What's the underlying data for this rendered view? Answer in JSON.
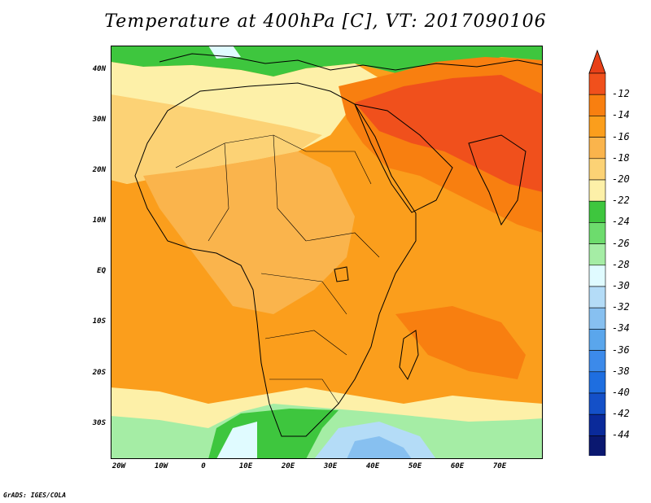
{
  "title": "Temperature at 400hPa [C], VT: 2017090106",
  "credit": "GrADS: IGES/COLA",
  "map": {
    "lon_range": [
      -22,
      80
    ],
    "lat_range": [
      -36,
      44
    ],
    "lat_labels": [
      "40N",
      "30N",
      "20N",
      "10N",
      "EQ",
      "10S",
      "20S",
      "30S"
    ],
    "lon_labels": [
      "20W",
      "10W",
      "0",
      "10E",
      "20E",
      "30E",
      "40E",
      "50E",
      "60E",
      "70E"
    ]
  },
  "colorbar": {
    "levels": [
      "-12",
      "-14",
      "-16",
      "-18",
      "-20",
      "-22",
      "-24",
      "-26",
      "-28",
      "-30",
      "-32",
      "-34",
      "-36",
      "-38",
      "-40",
      "-42",
      "-44"
    ],
    "colors": [
      "#f0501c",
      "#f87f10",
      "#fb9e1c",
      "#fab44c",
      "#fcd275",
      "#fdf0a8",
      "#3ec63e",
      "#6ddc6d",
      "#a5eda5",
      "#e0fbff",
      "#b4dcf7",
      "#87c0f0",
      "#5aa6ec",
      "#3c8aea",
      "#1e6ee0",
      "#1450c8",
      "#0a2a9a",
      "#0a1870"
    ],
    "top_arrow_color": "#e84018",
    "bottom_arrow_color": "#e0dcf5"
  }
}
